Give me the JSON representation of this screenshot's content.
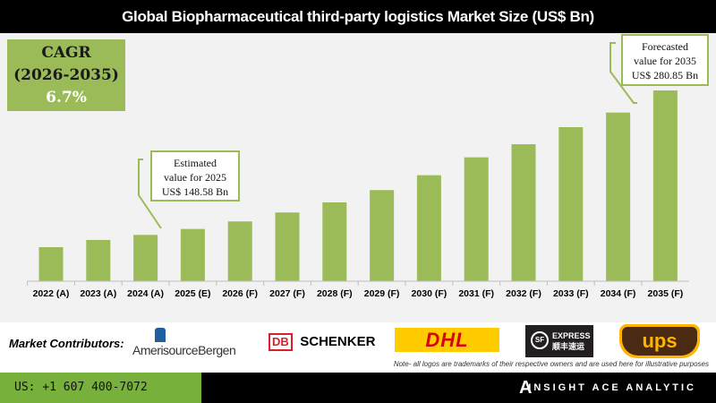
{
  "title": "Global Biopharmaceutical third-party logistics Market Size (US$ Bn)",
  "cagr": {
    "label": "CAGR",
    "period": "(2026-2035)",
    "value": "6.7%"
  },
  "callouts": {
    "estimated": {
      "line1": "Estimated",
      "line2": "value for 2025",
      "line3": "US$ 148.58 Bn"
    },
    "forecast": {
      "line1": "Forecasted",
      "line2": "value for 2035",
      "line3": "US$ 280.85 Bn"
    }
  },
  "chart_data": {
    "type": "bar",
    "title": "Global Biopharmaceutical third-party logistics Market Size (US$ Bn)",
    "categories": [
      "2022 (A)",
      "2023 (A)",
      "2024 (A)",
      "2025 (E)",
      "2026 (F)",
      "2027 (F)",
      "2028 (F)",
      "2029 (F)",
      "2030 (F)",
      "2031 (F)",
      "2032 (F)",
      "2033 (F)",
      "2034 (F)",
      "2035 (F)"
    ],
    "values": [
      131.2,
      138.1,
      142.9,
      148.58,
      155.8,
      164.3,
      174.0,
      185.7,
      199.9,
      217.0,
      229.5,
      245.8,
      259.7,
      280.85
    ],
    "ylim": [
      98.7,
      280.85
    ],
    "grid": false,
    "bar_color": "#9bbb59"
  },
  "contributors": {
    "label": "Market Contributors:",
    "logos": [
      "AmerisourceBergen",
      "DB SCHENKER",
      "DHL",
      "SF EXPRESS 顺丰速运",
      "UPS"
    ],
    "note": "Note- all logos are trademarks of their respective owners and are used here for illustrative purposes"
  },
  "footer": {
    "phone": "US: +1 607 400-7072",
    "brand": "INSIGHT ACE ANALYTIC"
  },
  "colors": {
    "accent": "#9bbb59",
    "footer_green": "#77b03a"
  }
}
